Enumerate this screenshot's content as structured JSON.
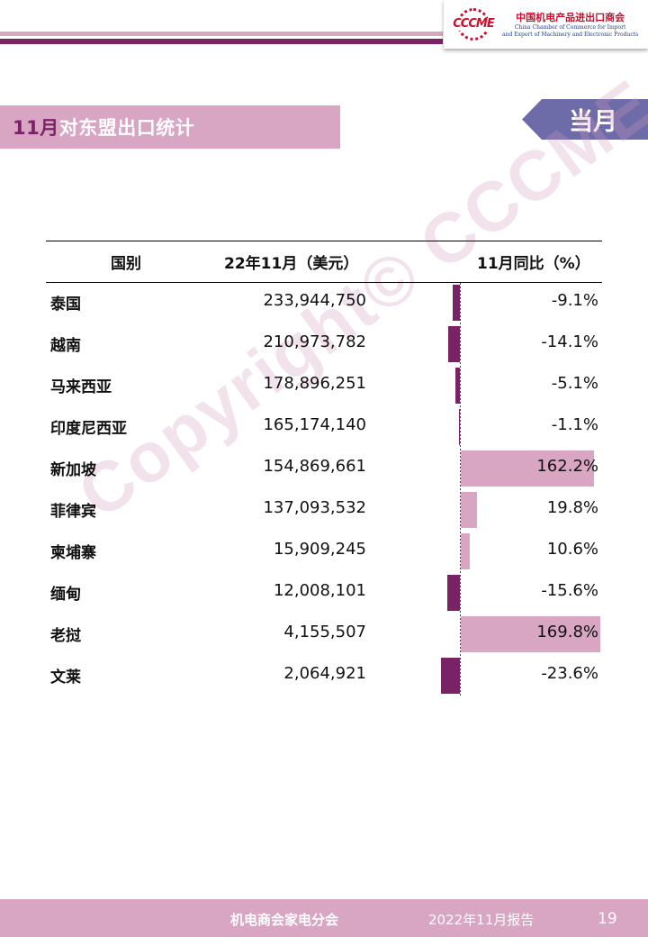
{
  "header": {
    "logo_mark": "CCCME",
    "org_name_cn": "中国机电产品进出口商会",
    "org_name_en_1": "China Chamber of Commerce for Import",
    "org_name_en_2": "and Export of Machinery and Electronic Products"
  },
  "title": {
    "accent": "11月",
    "text": "对东盟出口统计"
  },
  "tab_label": "当月",
  "table": {
    "columns": [
      "国别",
      "22年11月（美元）",
      "11月同比（%）"
    ],
    "rows": [
      {
        "country": "泰国",
        "value": "233,944,750",
        "yoy": "-9.1%"
      },
      {
        "country": "越南",
        "value": "210,973,782",
        "yoy": "-14.1%"
      },
      {
        "country": "马来西亚",
        "value": "178,896,251",
        "yoy": "-5.1%"
      },
      {
        "country": "印度尼西亚",
        "value": "165,174,140",
        "yoy": "-1.1%"
      },
      {
        "country": "新加坡",
        "value": "154,869,661",
        "yoy": "162.2%"
      },
      {
        "country": "菲律宾",
        "value": "137,093,532",
        "yoy": "19.8%"
      },
      {
        "country": "柬埔寨",
        "value": "15,909,245",
        "yoy": "10.6%"
      },
      {
        "country": "缅甸",
        "value": "12,008,101",
        "yoy": "-15.6%"
      },
      {
        "country": "老挝",
        "value": "4,155,507",
        "yoy": "169.8%"
      },
      {
        "country": "文莱",
        "value": "2,064,921",
        "yoy": "-23.6%"
      }
    ],
    "yoy_values": [
      -9.1,
      -14.1,
      -5.1,
      -1.1,
      162.2,
      19.8,
      10.6,
      -15.6,
      169.8,
      -23.6
    ]
  },
  "watermark": "Copyright© CCCME",
  "footer": {
    "org": "机电商会家电分会",
    "report": "2022年11月报告",
    "page": "19"
  },
  "colors": {
    "accent_dark": "#7a2266",
    "accent_light": "#d8a6c3",
    "tab": "#6e6ca8"
  }
}
